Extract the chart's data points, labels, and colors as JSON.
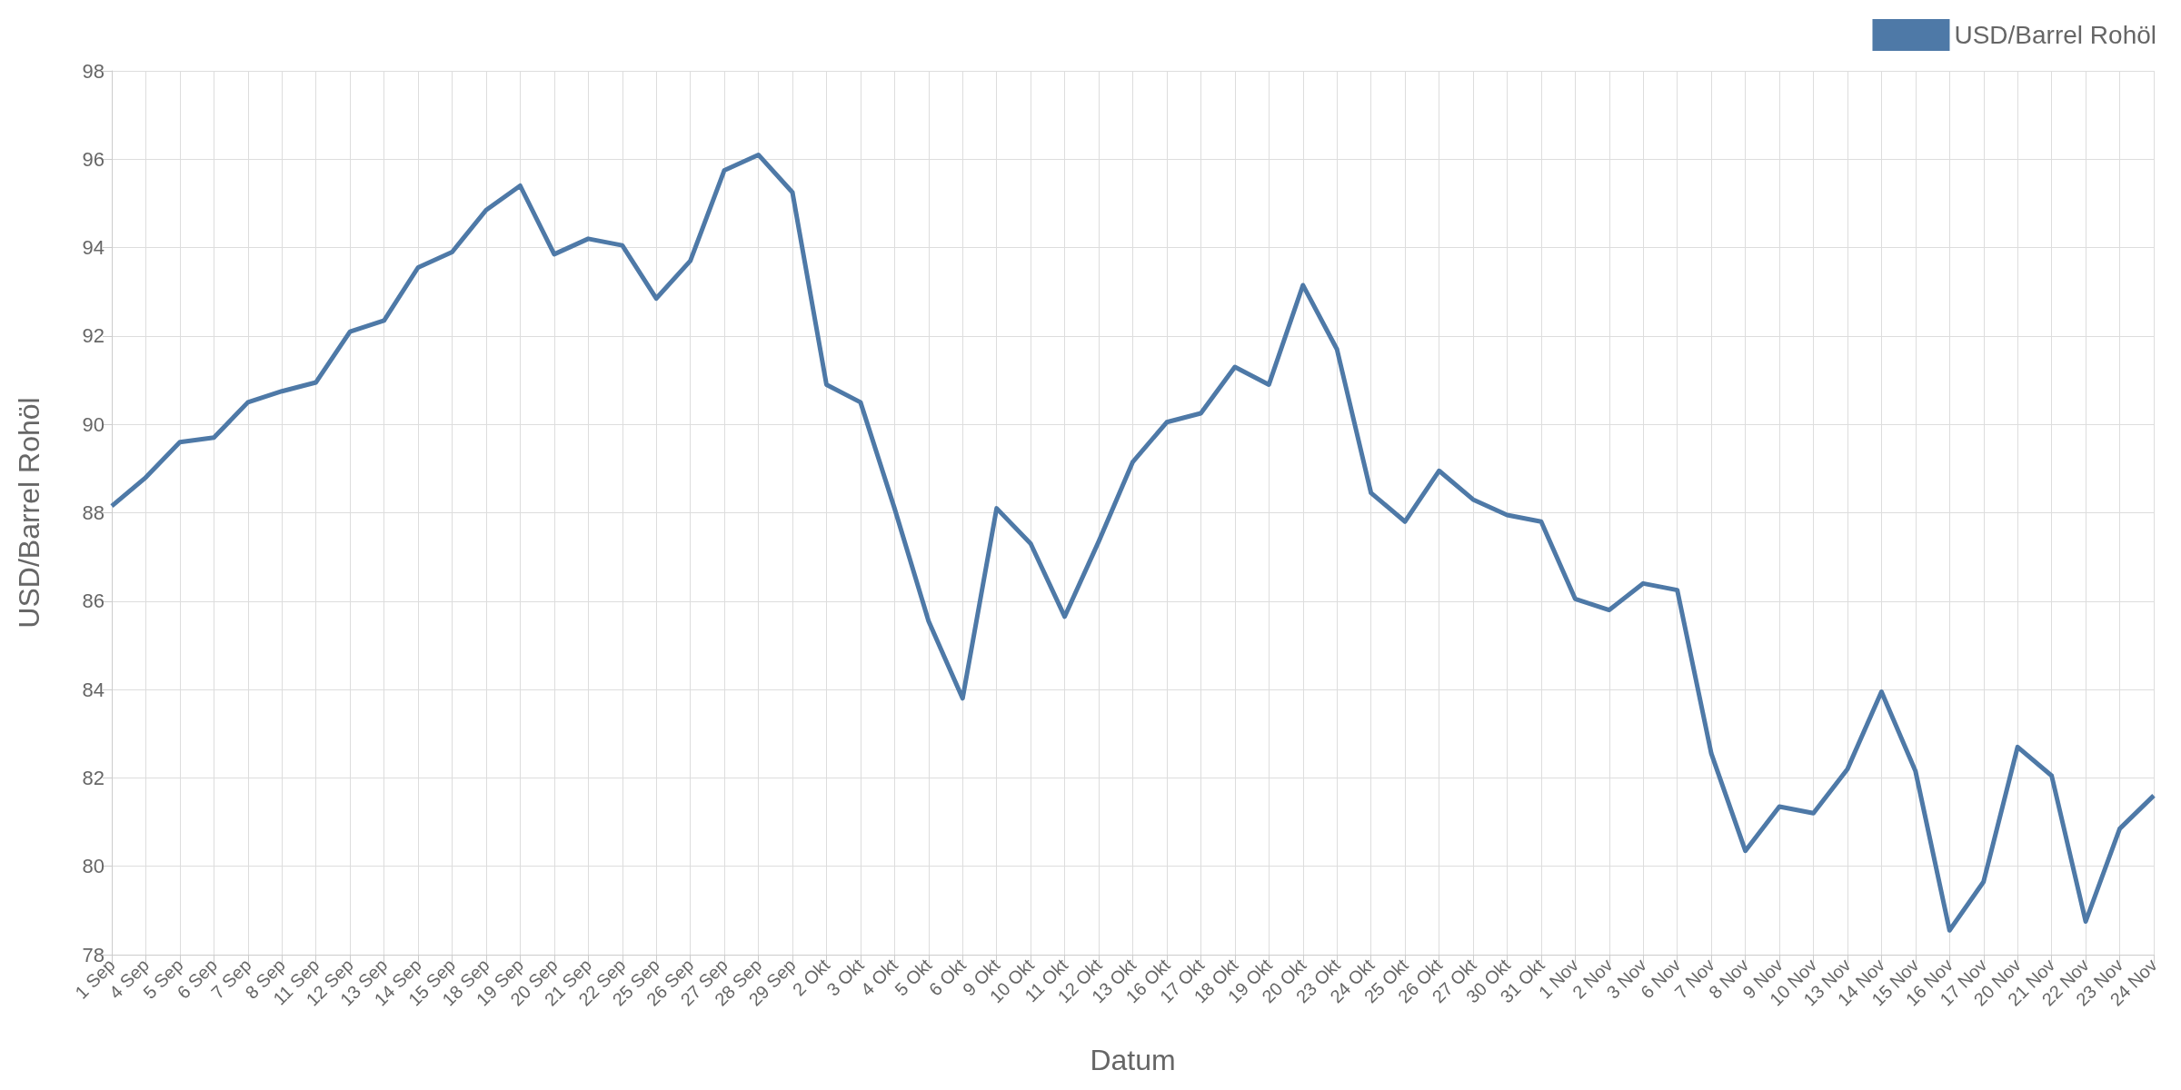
{
  "chart_data": {
    "type": "line",
    "xlabel": "Datum",
    "ylabel": "USD/Barrel Rohöl",
    "legend": "top right",
    "grid": true,
    "marker": "none",
    "line_style": "solid",
    "categories": [
      "1 Sep",
      "4 Sep",
      "5 Sep",
      "6 Sep",
      "7 Sep",
      "8 Sep",
      "11 Sep",
      "12 Sep",
      "13 Sep",
      "14 Sep",
      "15 Sep",
      "18 Sep",
      "19 Sep",
      "20 Sep",
      "21 Sep",
      "22 Sep",
      "25 Sep",
      "26 Sep",
      "27 Sep",
      "28 Sep",
      "29 Sep",
      "2 Okt",
      "3 Okt",
      "4 Okt",
      "5 Okt",
      "6 Okt",
      "9 Okt",
      "10 Okt",
      "11 Okt",
      "12 Okt",
      "13 Okt",
      "16 Okt",
      "17 Okt",
      "18 Okt",
      "19 Okt",
      "20 Okt",
      "23 Okt",
      "24 Okt",
      "25 Okt",
      "26 Okt",
      "27 Okt",
      "30 Okt",
      "31 Okt",
      "1 Nov",
      "2 Nov",
      "3 Nov",
      "6 Nov",
      "7 Nov",
      "8 Nov",
      "9 Nov",
      "10 Nov",
      "13 Nov",
      "14 Nov",
      "15 Nov",
      "16 Nov",
      "17 Nov",
      "20 Nov",
      "21 Nov",
      "22 Nov",
      "23 Nov",
      "24 Nov"
    ],
    "series": [
      {
        "name": "USD/Barrel Rohöl",
        "color": "#4e79a7",
        "values": [
          88.15,
          88.8,
          89.6,
          89.7,
          90.5,
          90.75,
          90.95,
          92.1,
          92.35,
          93.55,
          93.9,
          94.85,
          95.4,
          93.85,
          94.2,
          94.05,
          92.85,
          93.7,
          95.75,
          96.1,
          95.25,
          90.9,
          90.5,
          88.1,
          85.55,
          83.8,
          88.1,
          87.3,
          85.65,
          87.35,
          89.15,
          90.05,
          90.25,
          91.3,
          90.9,
          93.15,
          91.7,
          88.45,
          87.8,
          88.95,
          88.3,
          87.95,
          87.8,
          86.05,
          85.8,
          86.4,
          86.25,
          82.55,
          80.35,
          81.35,
          81.2,
          82.2,
          83.95,
          82.15,
          78.55,
          79.65,
          82.7,
          82.05,
          78.75,
          80.85,
          81.6
        ]
      }
    ],
    "ylim": [
      78,
      98
    ],
    "yticks": [
      78,
      80,
      82,
      84,
      86,
      88,
      90,
      92,
      94,
      96,
      98
    ]
  }
}
